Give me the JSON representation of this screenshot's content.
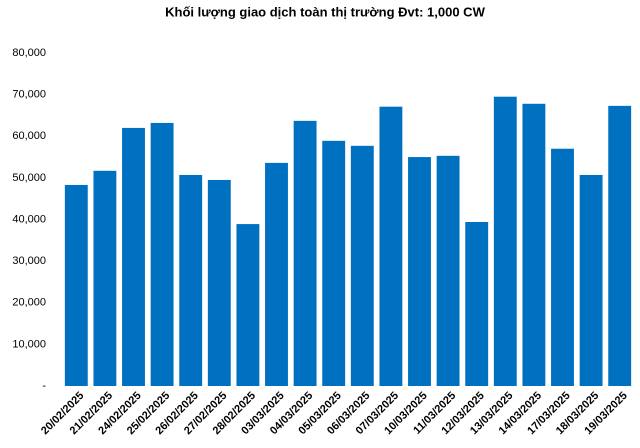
{
  "chart_data": {
    "type": "bar",
    "title": "Khối lượng giao dịch toàn thị trường Đvt: 1,000 CW",
    "categories": [
      "20/02/2025",
      "21/02/2025",
      "24/02/2025",
      "25/02/2025",
      "26/02/2025",
      "27/02/2025",
      "28/02/2025",
      "03/03/2025",
      "04/03/2025",
      "05/03/2025",
      "06/03/2025",
      "07/03/2025",
      "10/03/2025",
      "11/03/2025",
      "12/03/2025",
      "13/03/2025",
      "14/03/2025",
      "17/03/2025",
      "18/03/2025",
      "19/03/2025"
    ],
    "values": [
      48300,
      51700,
      62000,
      63200,
      50700,
      49500,
      38900,
      53600,
      63700,
      58900,
      57700,
      67100,
      55000,
      55300,
      39400,
      69500,
      67800,
      57000,
      50700,
      67300
    ],
    "color": "#0070c0",
    "ylim": [
      0,
      80000
    ],
    "yticks": [
      {
        "value": 0,
        "label": "-"
      },
      {
        "value": 10000,
        "label": "10,000"
      },
      {
        "value": 20000,
        "label": "20,000"
      },
      {
        "value": 30000,
        "label": "30,000"
      },
      {
        "value": 40000,
        "label": "40,000"
      },
      {
        "value": 50000,
        "label": "50,000"
      },
      {
        "value": 60000,
        "label": "60,000"
      },
      {
        "value": 70000,
        "label": "70,000"
      },
      {
        "value": 80000,
        "label": "80,000"
      }
    ],
    "grid": false
  }
}
